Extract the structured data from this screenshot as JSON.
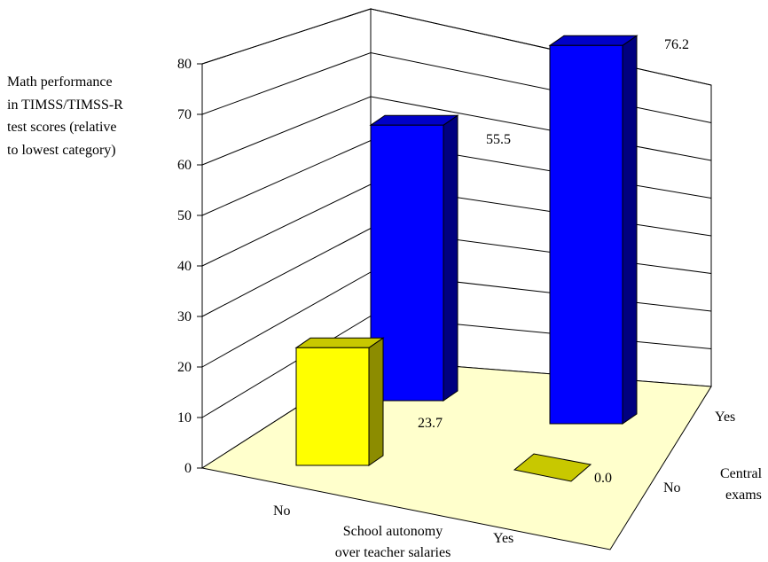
{
  "chart_data": {
    "type": "bar",
    "ylabel_lines": [
      "Math performance",
      "in TIMSS/TIMSS-R",
      "test scores (relative",
      "to lowest category)"
    ],
    "yticks": [
      "0",
      "10",
      "20",
      "30",
      "40",
      "50",
      "60",
      "70",
      "80"
    ],
    "ylim": [
      0,
      80
    ],
    "grid": true,
    "x_axis": {
      "title_lines": [
        "School autonomy",
        "over teacher salaries"
      ],
      "categories": [
        "No",
        "Yes"
      ]
    },
    "depth_axis": {
      "title_lines": [
        "Central",
        "exams"
      ],
      "categories": [
        "No",
        "Yes"
      ]
    },
    "series": [
      {
        "depth_category": "No",
        "values": [
          23.7,
          0.0
        ],
        "labels": [
          "23.7",
          "0.0"
        ]
      },
      {
        "depth_category": "Yes",
        "values": [
          55.5,
          76.2
        ],
        "labels": [
          "55.5",
          "76.2"
        ]
      }
    ],
    "colors": {
      "yellow_front": "#ffff00",
      "yellow_top": "#c8c800",
      "yellow_side": "#8c8c00",
      "yellow_flat": "#c8c800",
      "blue_front": "#0000ff",
      "blue_top": "#0000c8",
      "blue_side": "#000080",
      "floor": "#ffffcc",
      "wall": "#ffffff",
      "gridline": "#000000"
    }
  }
}
